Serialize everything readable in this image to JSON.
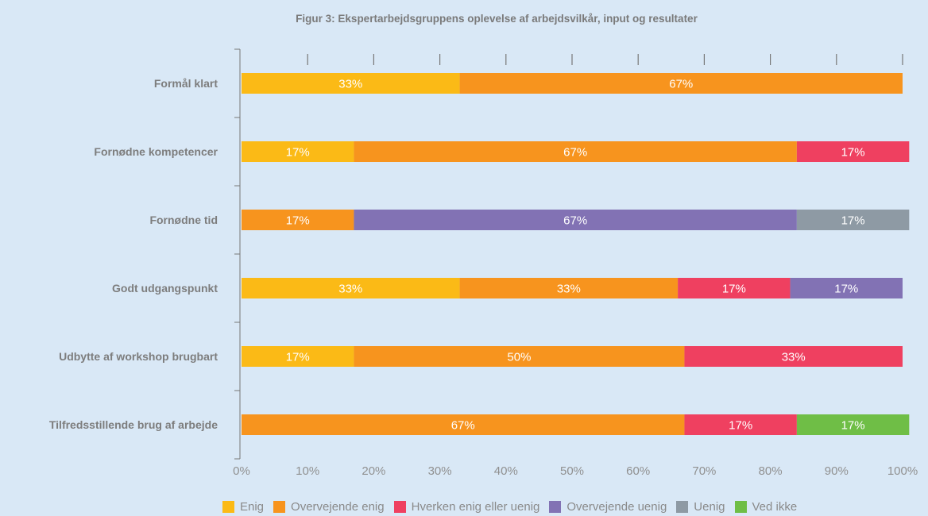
{
  "chart_data": {
    "type": "bar",
    "orientation": "horizontal",
    "stacked": true,
    "title": "Figur 3: Ekspertarbejdsgruppens oplevelse af arbejdsvilkår, input og resultater",
    "xlim": [
      0,
      100
    ],
    "x_ticks": [
      "0%",
      "10%",
      "20%",
      "30%",
      "40%",
      "50%",
      "60%",
      "70%",
      "80%",
      "90%",
      "100%"
    ],
    "categories": [
      "Formål klart",
      "Fornødne kompetencer",
      "Fornødne tid",
      "Godt udgangspunkt",
      "Udbytte af workshop brugbart",
      "Tilfredsstillende brug af arbejde"
    ],
    "series": [
      {
        "name": "Enig",
        "color": "#fbba16",
        "values": [
          33,
          17,
          0,
          33,
          17,
          0
        ]
      },
      {
        "name": "Overvejende enig",
        "color": "#f7941e",
        "values": [
          67,
          67,
          17,
          33,
          50,
          67
        ]
      },
      {
        "name": "Hverken enig eller uenig",
        "color": "#ef4060",
        "values": [
          0,
          17,
          0,
          17,
          33,
          17
        ]
      },
      {
        "name": "Overvejende uenig",
        "color": "#8272b4",
        "values": [
          0,
          0,
          67,
          17,
          0,
          0
        ]
      },
      {
        "name": "Uenig",
        "color": "#8e9aa4",
        "values": [
          0,
          0,
          17,
          0,
          0,
          0
        ]
      },
      {
        "name": "Ved ikke",
        "color": "#6fbe46",
        "values": [
          0,
          0,
          0,
          0,
          0,
          17
        ]
      }
    ],
    "value_labels": [
      [
        "33%",
        "67%"
      ],
      [
        "17%",
        "67%",
        "17%"
      ],
      [
        "17%",
        "67%",
        "17%"
      ],
      [
        "33%",
        "33%",
        "17%",
        "17%"
      ],
      [
        "17%",
        "50%",
        "33%"
      ],
      [
        "67%",
        "17%",
        "17%"
      ]
    ],
    "legend": "bottom",
    "grid": false
  }
}
